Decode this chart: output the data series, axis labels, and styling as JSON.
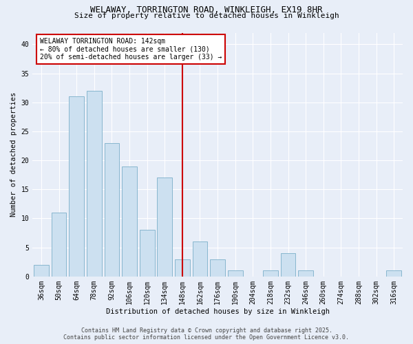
{
  "title1": "WELAWAY, TORRINGTON ROAD, WINKLEIGH, EX19 8HR",
  "title2": "Size of property relative to detached houses in Winkleigh",
  "xlabel": "Distribution of detached houses by size in Winkleigh",
  "ylabel": "Number of detached properties",
  "bar_labels": [
    "36sqm",
    "50sqm",
    "64sqm",
    "78sqm",
    "92sqm",
    "106sqm",
    "120sqm",
    "134sqm",
    "148sqm",
    "162sqm",
    "176sqm",
    "190sqm",
    "204sqm",
    "218sqm",
    "232sqm",
    "246sqm",
    "260sqm",
    "274sqm",
    "288sqm",
    "302sqm",
    "316sqm"
  ],
  "bar_values": [
    2,
    11,
    31,
    32,
    23,
    19,
    8,
    17,
    3,
    6,
    3,
    1,
    0,
    1,
    4,
    1,
    0,
    0,
    0,
    0,
    1
  ],
  "bar_color": "#cce0f0",
  "bar_edge_color": "#7aafc8",
  "vline_x": 8,
  "vline_color": "#cc0000",
  "annotation_title": "WELAWAY TORRINGTON ROAD: 142sqm",
  "annotation_line1": "← 80% of detached houses are smaller (130)",
  "annotation_line2": "20% of semi-detached houses are larger (33) →",
  "annotation_box_color": "#ffffff",
  "annotation_box_edge": "#cc0000",
  "footer1": "Contains HM Land Registry data © Crown copyright and database right 2025.",
  "footer2": "Contains public sector information licensed under the Open Government Licence v3.0.",
  "ylim": [
    0,
    42
  ],
  "yticks": [
    0,
    5,
    10,
    15,
    20,
    25,
    30,
    35,
    40
  ],
  "bg_color": "#e8eef8",
  "plot_bg_color": "#e8eef8",
  "title_fontsize": 9,
  "subtitle_fontsize": 8,
  "axis_fontsize": 7.5,
  "tick_fontsize": 7,
  "footer_fontsize": 6
}
